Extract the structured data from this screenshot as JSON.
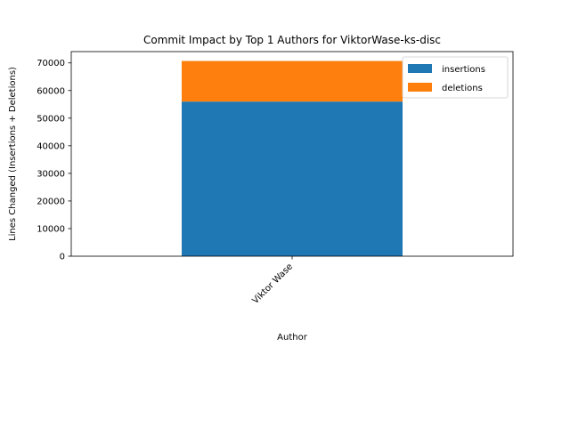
{
  "chart_data": {
    "type": "bar",
    "stacked": true,
    "title": "Commit Impact by Top 1 Authors for ViktorWase-ks-disc",
    "xlabel": "Author",
    "ylabel": "Lines Changed (Insertions + Deletions)",
    "categories": [
      "Viktor Wase"
    ],
    "series": [
      {
        "name": "insertions",
        "values": [
          56000
        ],
        "color": "#1f77b4"
      },
      {
        "name": "deletions",
        "values": [
          14700
        ],
        "color": "#ff7f0e"
      }
    ],
    "ylim": [
      0,
      74100
    ],
    "yticks": [
      0,
      10000,
      20000,
      30000,
      40000,
      50000,
      60000,
      70000
    ],
    "ytick_labels": [
      "0",
      "10000",
      "20000",
      "30000",
      "40000",
      "50000",
      "60000",
      "70000"
    ],
    "grid": false,
    "legend": "top-right"
  }
}
